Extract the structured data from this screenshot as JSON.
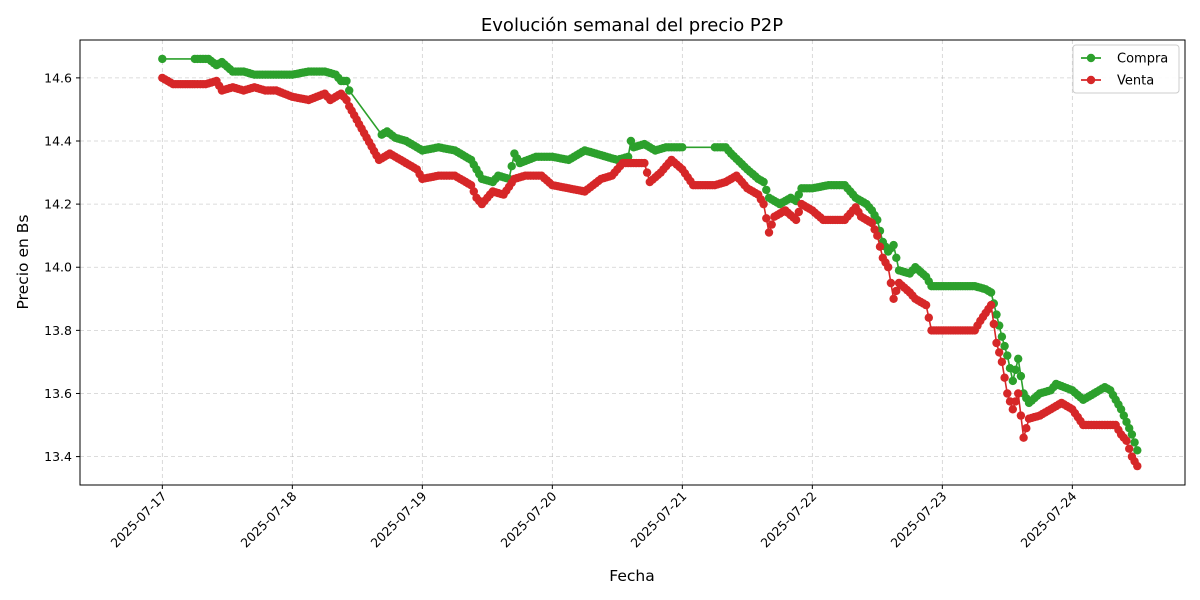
{
  "chart_data": {
    "type": "line",
    "title": "Evolución semanal del precio P2P",
    "xlabel": "Fecha",
    "ylabel": "Precio en Bs",
    "x_ticks": [
      "2025-07-17",
      "2025-07-18",
      "2025-07-19",
      "2025-07-20",
      "2025-07-21",
      "2025-07-22",
      "2025-07-23",
      "2025-07-24"
    ],
    "y_ticks": [
      "13.4",
      "13.6",
      "13.8",
      "14.0",
      "14.2",
      "14.4",
      "14.6"
    ],
    "xlim": [
      "2025-07-16T08:48",
      "2025-07-24T20:48"
    ],
    "ylim": [
      13.31,
      14.72
    ],
    "grid": true,
    "legend_position": "top-right",
    "series": [
      {
        "name": "Compra",
        "color": "#2ca02c",
        "points": [
          [
            "2025-07-17T00:00",
            14.66
          ],
          [
            "2025-07-17T06:00",
            14.66
          ],
          [
            "2025-07-17T08:30",
            14.66
          ],
          [
            "2025-07-17T10:00",
            14.64
          ],
          [
            "2025-07-17T11:00",
            14.65
          ],
          [
            "2025-07-17T13:00",
            14.62
          ],
          [
            "2025-07-17T15:00",
            14.62
          ],
          [
            "2025-07-17T17:00",
            14.61
          ],
          [
            "2025-07-17T19:00",
            14.61
          ],
          [
            "2025-07-17T21:00",
            14.61
          ],
          [
            "2025-07-18T00:00",
            14.61
          ],
          [
            "2025-07-18T03:00",
            14.62
          ],
          [
            "2025-07-18T06:00",
            14.62
          ],
          [
            "2025-07-18T08:00",
            14.61
          ],
          [
            "2025-07-18T09:00",
            14.59
          ],
          [
            "2025-07-18T10:00",
            14.59
          ],
          [
            "2025-07-18T10:30",
            14.56
          ],
          [
            "2025-07-18T16:30",
            14.42
          ],
          [
            "2025-07-18T17:30",
            14.43
          ],
          [
            "2025-07-18T19:00",
            14.41
          ],
          [
            "2025-07-18T21:00",
            14.4
          ],
          [
            "2025-07-18T23:00",
            14.38
          ],
          [
            "2025-07-19T00:00",
            14.37
          ],
          [
            "2025-07-19T03:00",
            14.38
          ],
          [
            "2025-07-19T06:00",
            14.37
          ],
          [
            "2025-07-19T09:00",
            14.34
          ],
          [
            "2025-07-19T11:00",
            14.28
          ],
          [
            "2025-07-19T13:00",
            14.27
          ],
          [
            "2025-07-19T14:00",
            14.29
          ],
          [
            "2025-07-19T16:00",
            14.28
          ],
          [
            "2025-07-19T17:00",
            14.36
          ],
          [
            "2025-07-19T18:00",
            14.33
          ],
          [
            "2025-07-19T21:00",
            14.35
          ],
          [
            "2025-07-20T00:00",
            14.35
          ],
          [
            "2025-07-20T03:00",
            14.34
          ],
          [
            "2025-07-20T06:00",
            14.37
          ],
          [
            "2025-07-20T08:00",
            14.36
          ],
          [
            "2025-07-20T10:00",
            14.35
          ],
          [
            "2025-07-20T12:00",
            14.34
          ],
          [
            "2025-07-20T14:00",
            14.35
          ],
          [
            "2025-07-20T14:30",
            14.4
          ],
          [
            "2025-07-20T15:00",
            14.38
          ],
          [
            "2025-07-20T17:00",
            14.39
          ],
          [
            "2025-07-20T19:00",
            14.37
          ],
          [
            "2025-07-20T21:00",
            14.38
          ],
          [
            "2025-07-21T00:00",
            14.38
          ],
          [
            "2025-07-21T06:00",
            14.38
          ],
          [
            "2025-07-21T08:00",
            14.38
          ],
          [
            "2025-07-21T09:00",
            14.36
          ],
          [
            "2025-07-21T12:00",
            14.31
          ],
          [
            "2025-07-21T14:00",
            14.28
          ],
          [
            "2025-07-21T15:00",
            14.27
          ],
          [
            "2025-07-21T16:00",
            14.22
          ],
          [
            "2025-07-21T18:00",
            14.2
          ],
          [
            "2025-07-21T20:00",
            14.22
          ],
          [
            "2025-07-21T21:00",
            14.21
          ],
          [
            "2025-07-21T22:00",
            14.25
          ],
          [
            "2025-07-22T00:00",
            14.25
          ],
          [
            "2025-07-22T03:00",
            14.26
          ],
          [
            "2025-07-22T06:00",
            14.26
          ],
          [
            "2025-07-22T08:00",
            14.22
          ],
          [
            "2025-07-22T10:00",
            14.2
          ],
          [
            "2025-07-22T11:00",
            14.18
          ],
          [
            "2025-07-22T12:00",
            14.15
          ],
          [
            "2025-07-22T13:00",
            14.08
          ],
          [
            "2025-07-22T14:00",
            14.05
          ],
          [
            "2025-07-22T15:00",
            14.07
          ],
          [
            "2025-07-22T16:00",
            13.99
          ],
          [
            "2025-07-22T18:00",
            13.98
          ],
          [
            "2025-07-22T19:00",
            14.0
          ],
          [
            "2025-07-22T21:00",
            13.97
          ],
          [
            "2025-07-22T22:00",
            13.94
          ],
          [
            "2025-07-23T02:00",
            13.94
          ],
          [
            "2025-07-23T06:00",
            13.94
          ],
          [
            "2025-07-23T08:00",
            13.93
          ],
          [
            "2025-07-23T09:00",
            13.92
          ],
          [
            "2025-07-23T10:00",
            13.85
          ],
          [
            "2025-07-23T11:00",
            13.78
          ],
          [
            "2025-07-23T12:00",
            13.72
          ],
          [
            "2025-07-23T13:00",
            13.64
          ],
          [
            "2025-07-23T14:00",
            13.71
          ],
          [
            "2025-07-23T15:00",
            13.6
          ],
          [
            "2025-07-23T16:00",
            13.57
          ],
          [
            "2025-07-23T18:00",
            13.6
          ],
          [
            "2025-07-23T20:00",
            13.61
          ],
          [
            "2025-07-23T21:00",
            13.63
          ],
          [
            "2025-07-24T00:00",
            13.61
          ],
          [
            "2025-07-24T02:00",
            13.58
          ],
          [
            "2025-07-24T04:00",
            13.6
          ],
          [
            "2025-07-24T06:00",
            13.62
          ],
          [
            "2025-07-24T07:00",
            13.61
          ],
          [
            "2025-07-24T08:00",
            13.58
          ],
          [
            "2025-07-24T09:00",
            13.55
          ],
          [
            "2025-07-24T10:00",
            13.51
          ],
          [
            "2025-07-24T11:00",
            13.47
          ],
          [
            "2025-07-24T12:00",
            13.42
          ]
        ]
      },
      {
        "name": "Venta",
        "color": "#d62728",
        "points": [
          [
            "2025-07-17T00:00",
            14.6
          ],
          [
            "2025-07-17T02:00",
            14.58
          ],
          [
            "2025-07-17T06:00",
            14.58
          ],
          [
            "2025-07-17T08:00",
            14.58
          ],
          [
            "2025-07-17T10:00",
            14.59
          ],
          [
            "2025-07-17T11:00",
            14.56
          ],
          [
            "2025-07-17T13:00",
            14.57
          ],
          [
            "2025-07-17T15:00",
            14.56
          ],
          [
            "2025-07-17T17:00",
            14.57
          ],
          [
            "2025-07-17T19:00",
            14.56
          ],
          [
            "2025-07-17T21:00",
            14.56
          ],
          [
            "2025-07-18T00:00",
            14.54
          ],
          [
            "2025-07-18T03:00",
            14.53
          ],
          [
            "2025-07-18T06:00",
            14.55
          ],
          [
            "2025-07-18T07:00",
            14.53
          ],
          [
            "2025-07-18T09:00",
            14.55
          ],
          [
            "2025-07-18T10:00",
            14.53
          ],
          [
            "2025-07-18T10:30",
            14.51
          ],
          [
            "2025-07-18T16:00",
            14.34
          ],
          [
            "2025-07-18T18:00",
            14.36
          ],
          [
            "2025-07-18T20:00",
            14.34
          ],
          [
            "2025-07-18T23:00",
            14.31
          ],
          [
            "2025-07-19T00:00",
            14.28
          ],
          [
            "2025-07-19T03:00",
            14.29
          ],
          [
            "2025-07-19T06:00",
            14.29
          ],
          [
            "2025-07-19T09:00",
            14.26
          ],
          [
            "2025-07-19T10:00",
            14.22
          ],
          [
            "2025-07-19T11:00",
            14.2
          ],
          [
            "2025-07-19T13:00",
            14.24
          ],
          [
            "2025-07-19T15:00",
            14.23
          ],
          [
            "2025-07-19T17:00",
            14.28
          ],
          [
            "2025-07-19T19:00",
            14.29
          ],
          [
            "2025-07-19T22:00",
            14.29
          ],
          [
            "2025-07-20T00:00",
            14.26
          ],
          [
            "2025-07-20T03:00",
            14.25
          ],
          [
            "2025-07-20T06:00",
            14.24
          ],
          [
            "2025-07-20T09:00",
            14.28
          ],
          [
            "2025-07-20T11:00",
            14.29
          ],
          [
            "2025-07-20T13:00",
            14.33
          ],
          [
            "2025-07-20T15:00",
            14.33
          ],
          [
            "2025-07-20T17:00",
            14.33
          ],
          [
            "2025-07-20T18:00",
            14.27
          ],
          [
            "2025-07-20T20:00",
            14.3
          ],
          [
            "2025-07-20T22:00",
            14.34
          ],
          [
            "2025-07-21T00:00",
            14.31
          ],
          [
            "2025-07-21T02:00",
            14.26
          ],
          [
            "2025-07-21T06:00",
            14.26
          ],
          [
            "2025-07-21T08:00",
            14.27
          ],
          [
            "2025-07-21T10:00",
            14.29
          ],
          [
            "2025-07-21T12:00",
            14.25
          ],
          [
            "2025-07-21T14:00",
            14.23
          ],
          [
            "2025-07-21T15:00",
            14.2
          ],
          [
            "2025-07-21T16:00",
            14.11
          ],
          [
            "2025-07-21T17:00",
            14.16
          ],
          [
            "2025-07-21T19:00",
            14.18
          ],
          [
            "2025-07-21T21:00",
            14.15
          ],
          [
            "2025-07-21T22:00",
            14.2
          ],
          [
            "2025-07-22T00:00",
            14.18
          ],
          [
            "2025-07-22T02:00",
            14.15
          ],
          [
            "2025-07-22T06:00",
            14.15
          ],
          [
            "2025-07-22T08:00",
            14.19
          ],
          [
            "2025-07-22T09:00",
            14.16
          ],
          [
            "2025-07-22T11:00",
            14.14
          ],
          [
            "2025-07-22T12:00",
            14.1
          ],
          [
            "2025-07-22T13:00",
            14.03
          ],
          [
            "2025-07-22T14:00",
            14.0
          ],
          [
            "2025-07-22T15:00",
            13.9
          ],
          [
            "2025-07-22T16:00",
            13.95
          ],
          [
            "2025-07-22T18:00",
            13.92
          ],
          [
            "2025-07-22T19:00",
            13.9
          ],
          [
            "2025-07-22T21:00",
            13.88
          ],
          [
            "2025-07-22T22:00",
            13.8
          ],
          [
            "2025-07-23T02:00",
            13.8
          ],
          [
            "2025-07-23T06:00",
            13.8
          ],
          [
            "2025-07-23T07:00",
            13.83
          ],
          [
            "2025-07-23T09:00",
            13.88
          ],
          [
            "2025-07-23T10:00",
            13.76
          ],
          [
            "2025-07-23T11:00",
            13.7
          ],
          [
            "2025-07-23T12:00",
            13.6
          ],
          [
            "2025-07-23T13:00",
            13.55
          ],
          [
            "2025-07-23T14:00",
            13.6
          ],
          [
            "2025-07-23T15:00",
            13.46
          ],
          [
            "2025-07-23T16:00",
            13.52
          ],
          [
            "2025-07-23T18:00",
            13.53
          ],
          [
            "2025-07-23T20:00",
            13.55
          ],
          [
            "2025-07-23T22:00",
            13.57
          ],
          [
            "2025-07-24T00:00",
            13.55
          ],
          [
            "2025-07-24T02:00",
            13.5
          ],
          [
            "2025-07-24T05:00",
            13.5
          ],
          [
            "2025-07-24T08:00",
            13.5
          ],
          [
            "2025-07-24T09:00",
            13.47
          ],
          [
            "2025-07-24T10:00",
            13.45
          ],
          [
            "2025-07-24T11:00",
            13.4
          ],
          [
            "2025-07-24T12:00",
            13.37
          ]
        ]
      }
    ]
  }
}
